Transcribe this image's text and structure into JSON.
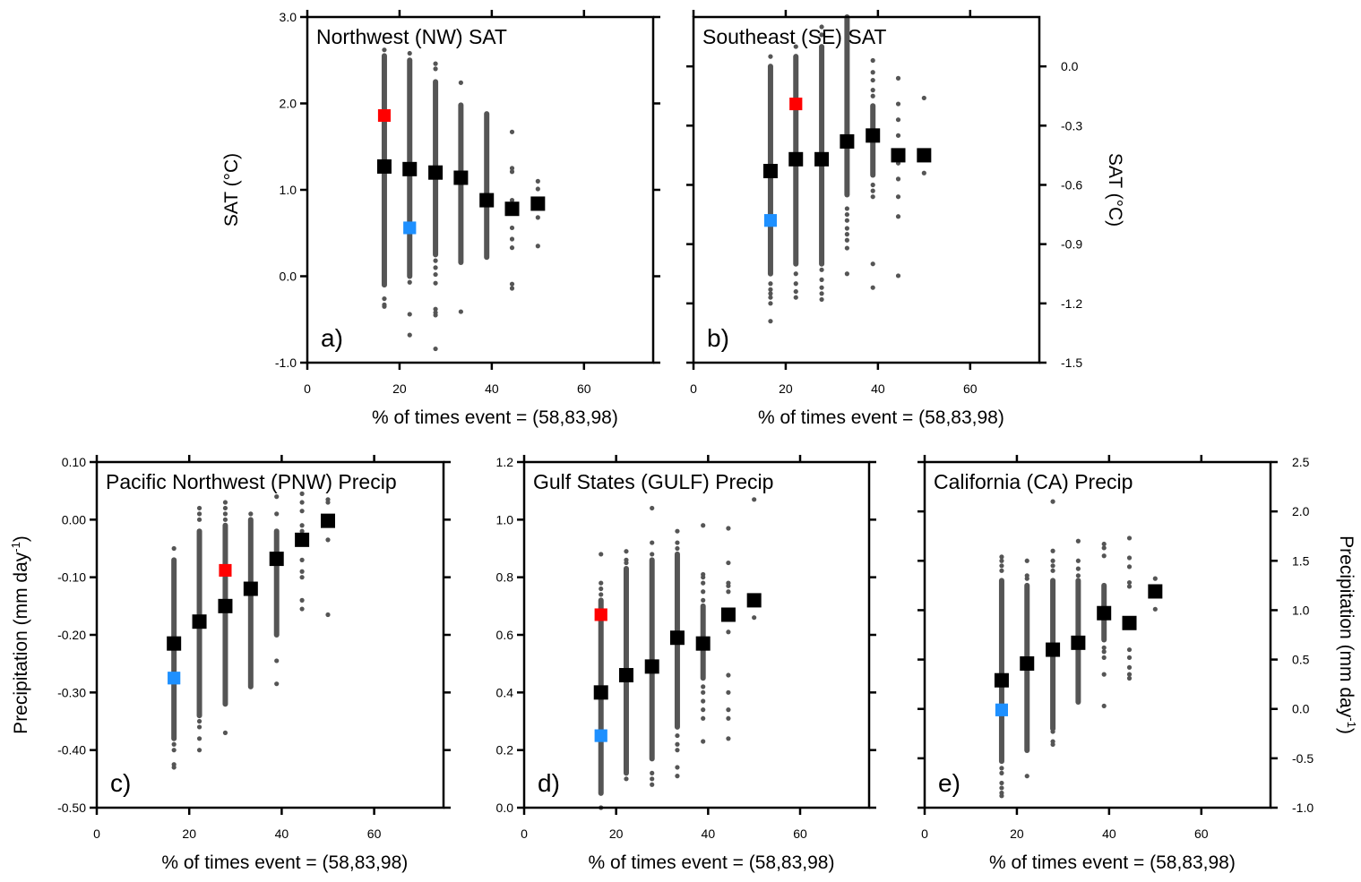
{
  "chart_data": [
    {
      "panel": "a",
      "type": "scatter",
      "title": "Northwest (NW) SAT",
      "panel_label": "a)",
      "xlabel": "% of times event = (58,83,98)",
      "ylabel": "SAT (°C)",
      "ylabel_side": "left",
      "xlim": [
        0,
        75
      ],
      "ylim": [
        -1.0,
        3.0
      ],
      "xticks": [
        0,
        20,
        40,
        60
      ],
      "yticks": [
        -1.0,
        0.0,
        1.0,
        2.0,
        3.0
      ],
      "ytick_labels": [
        "-1.0",
        "0.0",
        "1.0",
        "2.0",
        "3.0"
      ],
      "grid": false,
      "ensemble_columns": [
        {
          "x": 16.7,
          "dense_range": [
            -0.1,
            2.55
          ],
          "outliers": [
            2.62,
            -0.26,
            -0.33,
            -0.35
          ]
        },
        {
          "x": 22.2,
          "dense_range": [
            0.0,
            2.5
          ],
          "outliers": [
            2.58,
            -0.07,
            -0.44,
            -0.68
          ]
        },
        {
          "x": 27.8,
          "dense_range": [
            0.25,
            2.25
          ],
          "outliers": [
            2.46,
            2.4,
            0.18,
            0.1,
            0.02,
            -0.08,
            -0.38,
            -0.42,
            -0.45,
            -0.84
          ]
        },
        {
          "x": 33.3,
          "dense_range": [
            0.16,
            1.98
          ],
          "outliers": [
            2.24,
            -0.41
          ]
        },
        {
          "x": 38.9,
          "dense_range": [
            0.22,
            1.88
          ],
          "outliers": []
        },
        {
          "x": 44.4,
          "dense_range": null,
          "outliers": [
            1.67,
            1.25,
            1.21,
            0.88,
            0.56,
            0.43,
            0.33,
            -0.09,
            -0.14
          ]
        },
        {
          "x": 50.0,
          "dense_range": null,
          "outliers": [
            1.1,
            1.01,
            0.68,
            0.35
          ]
        }
      ],
      "ensemble_mean": {
        "color": "#000000",
        "x": [
          16.7,
          22.2,
          27.8,
          33.3,
          38.9,
          44.4,
          50.0
        ],
        "y": [
          1.27,
          1.24,
          1.2,
          1.14,
          0.88,
          0.78,
          0.84
        ]
      },
      "highlights": [
        {
          "name": "red",
          "color": "#ff0000",
          "x": 16.7,
          "y": 1.86
        },
        {
          "name": "blue",
          "color": "#1e90ff",
          "x": 22.2,
          "y": 0.56
        }
      ]
    },
    {
      "panel": "b",
      "type": "scatter",
      "title": "Southeast (SE) SAT",
      "panel_label": "b)",
      "xlabel": "% of times event = (58,83,98)",
      "ylabel": "SAT (°C)",
      "ylabel_side": "right",
      "xlim": [
        0,
        75
      ],
      "ylim": [
        -1.5,
        0.25
      ],
      "xticks": [
        0,
        20,
        40,
        60
      ],
      "yticks": [
        -1.5,
        -1.2,
        -0.9,
        -0.6,
        -0.3,
        0.0
      ],
      "ytick_labels": [
        "-1.5",
        "-1.2",
        "-0.9",
        "-0.6",
        "-0.3",
        "0.0"
      ],
      "grid": false,
      "ensemble_columns": [
        {
          "x": 16.7,
          "dense_range": [
            -1.05,
            0.0
          ],
          "outliers": [
            0.05,
            -1.1,
            -1.13,
            -1.15,
            -1.17,
            -1.2,
            -1.29
          ]
        },
        {
          "x": 22.2,
          "dense_range": [
            -1.0,
            0.05
          ],
          "outliers": [
            0.1,
            -1.05,
            -1.1,
            -1.14,
            -1.17
          ]
        },
        {
          "x": 27.8,
          "dense_range": [
            -1.0,
            0.1
          ],
          "outliers": [
            0.16,
            0.2,
            -1.03,
            -1.08,
            -1.12,
            -1.15,
            -1.18
          ]
        },
        {
          "x": 33.3,
          "dense_range": [
            -0.65,
            0.25
          ],
          "outliers": [
            -0.72,
            -0.75,
            -0.78,
            -0.82,
            -0.85,
            -0.88,
            -0.92,
            -1.05
          ]
        },
        {
          "x": 38.9,
          "dense_range": [
            -0.55,
            -0.2
          ],
          "outliers": [
            0.03,
            -0.03,
            -0.07,
            -0.12,
            -0.15,
            -0.6,
            -0.63,
            -0.66,
            -1.0,
            -1.12
          ]
        },
        {
          "x": 44.4,
          "dense_range": null,
          "outliers": [
            -0.06,
            -0.19,
            -0.27,
            -0.35,
            -0.49,
            -0.57,
            -0.66,
            -0.76,
            -1.06
          ]
        },
        {
          "x": 50.0,
          "dense_range": null,
          "outliers": [
            -0.16,
            -0.47,
            -0.54
          ]
        }
      ],
      "ensemble_mean": {
        "color": "#000000",
        "x": [
          16.7,
          22.2,
          27.8,
          33.3,
          38.9,
          44.4,
          50.0
        ],
        "y": [
          -0.53,
          -0.47,
          -0.47,
          -0.38,
          -0.35,
          -0.45,
          -0.45
        ]
      },
      "highlights": [
        {
          "name": "red",
          "color": "#ff0000",
          "x": 22.2,
          "y": -0.19
        },
        {
          "name": "blue",
          "color": "#1e90ff",
          "x": 16.7,
          "y": -0.78
        }
      ]
    },
    {
      "panel": "c",
      "type": "scatter",
      "title": "Pacific Northwest (PNW) Precip",
      "panel_label": "c)",
      "xlabel": "% of times event = (58,83,98)",
      "ylabel": "Precipitation (mm day",
      "ylabel_sup": "-1",
      "ylabel_suffix": ")",
      "ylabel_side": "left",
      "xlim": [
        0,
        75
      ],
      "ylim": [
        -0.5,
        0.1
      ],
      "xticks": [
        0,
        20,
        40,
        60
      ],
      "yticks": [
        -0.5,
        -0.4,
        -0.3,
        -0.2,
        -0.1,
        0.0,
        0.1
      ],
      "ytick_labels": [
        "-0.50",
        "-0.40",
        "-0.30",
        "-0.20",
        "-0.10",
        "0.00",
        "0.10"
      ],
      "grid": false,
      "ensemble_columns": [
        {
          "x": 16.7,
          "dense_range": [
            -0.38,
            -0.07
          ],
          "outliers": [
            -0.05,
            -0.39,
            -0.4,
            -0.425,
            -0.43
          ]
        },
        {
          "x": 22.2,
          "dense_range": [
            -0.34,
            -0.02
          ],
          "outliers": [
            0.02,
            0.01,
            0.0,
            -0.35,
            -0.36,
            -0.38,
            -0.4
          ]
        },
        {
          "x": 27.8,
          "dense_range": [
            -0.32,
            -0.01
          ],
          "outliers": [
            0.03,
            0.02,
            0.01,
            0.0,
            -0.37
          ]
        },
        {
          "x": 33.3,
          "dense_range": [
            -0.29,
            0.0
          ],
          "outliers": [
            0.01
          ]
        },
        {
          "x": 38.9,
          "dense_range": [
            -0.2,
            -0.02
          ],
          "outliers": [
            0.04,
            0.01,
            -0.245,
            -0.285
          ]
        },
        {
          "x": 44.4,
          "dense_range": null,
          "outliers": [
            0.045,
            0.03,
            0.015,
            -0.01,
            -0.02,
            -0.03,
            -0.07,
            -0.09,
            -0.1,
            -0.14,
            -0.155
          ]
        },
        {
          "x": 50.0,
          "dense_range": null,
          "outliers": [
            0.035,
            0.03,
            -0.035,
            -0.165
          ]
        }
      ],
      "ensemble_mean": {
        "color": "#000000",
        "x": [
          16.7,
          22.2,
          27.8,
          33.3,
          38.9,
          44.4,
          50.0
        ],
        "y": [
          -0.215,
          -0.177,
          -0.15,
          -0.12,
          -0.068,
          -0.035,
          -0.002
        ]
      },
      "highlights": [
        {
          "name": "red",
          "color": "#ff0000",
          "x": 27.8,
          "y": -0.088
        },
        {
          "name": "blue",
          "color": "#1e90ff",
          "x": 16.7,
          "y": -0.275
        }
      ]
    },
    {
      "panel": "d",
      "type": "scatter",
      "title": "Gulf States (GULF) Precip",
      "panel_label": "d)",
      "xlabel": "% of times event = (58,83,98)",
      "ylabel": "",
      "ylabel_side": "none",
      "xlim": [
        0,
        75
      ],
      "ylim": [
        0.0,
        1.2
      ],
      "xticks": [
        0,
        20,
        40,
        60
      ],
      "yticks": [
        0.0,
        0.2,
        0.4,
        0.6,
        0.8,
        1.0,
        1.2
      ],
      "ytick_labels": [
        "0.0",
        "0.2",
        "0.4",
        "0.6",
        "0.8",
        "1.0",
        "1.2"
      ],
      "grid": false,
      "ensemble_columns": [
        {
          "x": 16.7,
          "dense_range": [
            0.05,
            0.72
          ],
          "outliers": [
            0.88,
            0.78,
            0.76,
            0.74,
            0.0
          ]
        },
        {
          "x": 22.2,
          "dense_range": [
            0.12,
            0.83
          ],
          "outliers": [
            0.89,
            0.86,
            0.85,
            0.1
          ]
        },
        {
          "x": 27.8,
          "dense_range": [
            0.17,
            0.86
          ],
          "outliers": [
            1.04,
            0.92,
            0.88,
            0.12,
            0.1,
            0.08
          ]
        },
        {
          "x": 33.3,
          "dense_range": [
            0.28,
            0.88
          ],
          "outliers": [
            0.96,
            0.92,
            0.9,
            0.25,
            0.22,
            0.2,
            0.14,
            0.11
          ]
        },
        {
          "x": 38.9,
          "dense_range": [
            0.45,
            0.7
          ],
          "outliers": [
            0.98,
            0.81,
            0.8,
            0.78,
            0.75,
            0.72,
            0.42,
            0.4,
            0.37,
            0.34,
            0.31,
            0.23
          ]
        },
        {
          "x": 44.4,
          "dense_range": null,
          "outliers": [
            0.97,
            0.85,
            0.78,
            0.77,
            0.75,
            0.61,
            0.46,
            0.4,
            0.34,
            0.31,
            0.24
          ]
        },
        {
          "x": 50.0,
          "dense_range": null,
          "outliers": [
            1.07,
            0.66
          ]
        }
      ],
      "ensemble_mean": {
        "color": "#000000",
        "x": [
          16.7,
          22.2,
          27.8,
          33.3,
          38.9,
          44.4,
          50.0
        ],
        "y": [
          0.4,
          0.46,
          0.49,
          0.59,
          0.57,
          0.67,
          0.72
        ]
      },
      "highlights": [
        {
          "name": "red",
          "color": "#ff0000",
          "x": 16.7,
          "y": 0.67
        },
        {
          "name": "blue",
          "color": "#1e90ff",
          "x": 16.7,
          "y": 0.25
        }
      ]
    },
    {
      "panel": "e",
      "type": "scatter",
      "title": "California (CA) Precip",
      "panel_label": "e)",
      "xlabel": "% of times event = (58,83,98)",
      "ylabel": "Precipitation (mm day",
      "ylabel_sup": "-1",
      "ylabel_suffix": ")",
      "ylabel_side": "right",
      "xlim": [
        0,
        75
      ],
      "ylim": [
        -1.0,
        2.5
      ],
      "xticks": [
        0,
        20,
        40,
        60
      ],
      "yticks": [
        -1.0,
        -0.5,
        0.0,
        0.5,
        1.0,
        1.5,
        2.0,
        2.5
      ],
      "ytick_labels": [
        "-1.0",
        "-0.5",
        "0.0",
        "0.5",
        "1.0",
        "1.5",
        "2.0",
        "2.5"
      ],
      "grid": false,
      "ensemble_columns": [
        {
          "x": 16.7,
          "dense_range": [
            -0.53,
            1.3
          ],
          "outliers": [
            1.54,
            1.5,
            1.45,
            1.4,
            -0.6,
            -0.65,
            -0.75,
            -0.8,
            -0.85,
            -0.88
          ]
        },
        {
          "x": 22.2,
          "dense_range": [
            -0.42,
            1.25
          ],
          "outliers": [
            1.5,
            1.35,
            1.32,
            -0.68
          ]
        },
        {
          "x": 27.8,
          "dense_range": [
            -0.2,
            1.3
          ],
          "outliers": [
            2.1,
            1.6,
            1.5,
            1.45,
            1.4,
            -0.23,
            -0.33,
            -0.36
          ]
        },
        {
          "x": 33.3,
          "dense_range": [
            0.07,
            1.3
          ],
          "outliers": [
            1.7,
            1.5,
            1.42,
            1.35
          ]
        },
        {
          "x": 38.9,
          "dense_range": [
            0.7,
            1.25
          ],
          "outliers": [
            1.67,
            1.63,
            1.55,
            0.62,
            0.58,
            0.52,
            0.35,
            0.03
          ]
        },
        {
          "x": 44.4,
          "dense_range": null,
          "outliers": [
            1.73,
            1.53,
            1.44,
            1.28,
            1.24,
            0.6,
            0.52,
            0.42,
            0.35,
            0.31
          ]
        },
        {
          "x": 50.0,
          "dense_range": null,
          "outliers": [
            1.32,
            1.01
          ]
        }
      ],
      "ensemble_mean": {
        "color": "#000000",
        "x": [
          16.7,
          22.2,
          27.8,
          33.3,
          38.9,
          44.4,
          50.0
        ],
        "y": [
          0.29,
          0.46,
          0.6,
          0.67,
          0.97,
          0.87,
          1.19
        ]
      },
      "highlights": [
        {
          "name": "red",
          "color": "#ff0000",
          "x": 38.9,
          "y": 0.97
        },
        {
          "name": "blue",
          "color": "#1e90ff",
          "x": 16.7,
          "y": -0.01
        }
      ]
    }
  ]
}
